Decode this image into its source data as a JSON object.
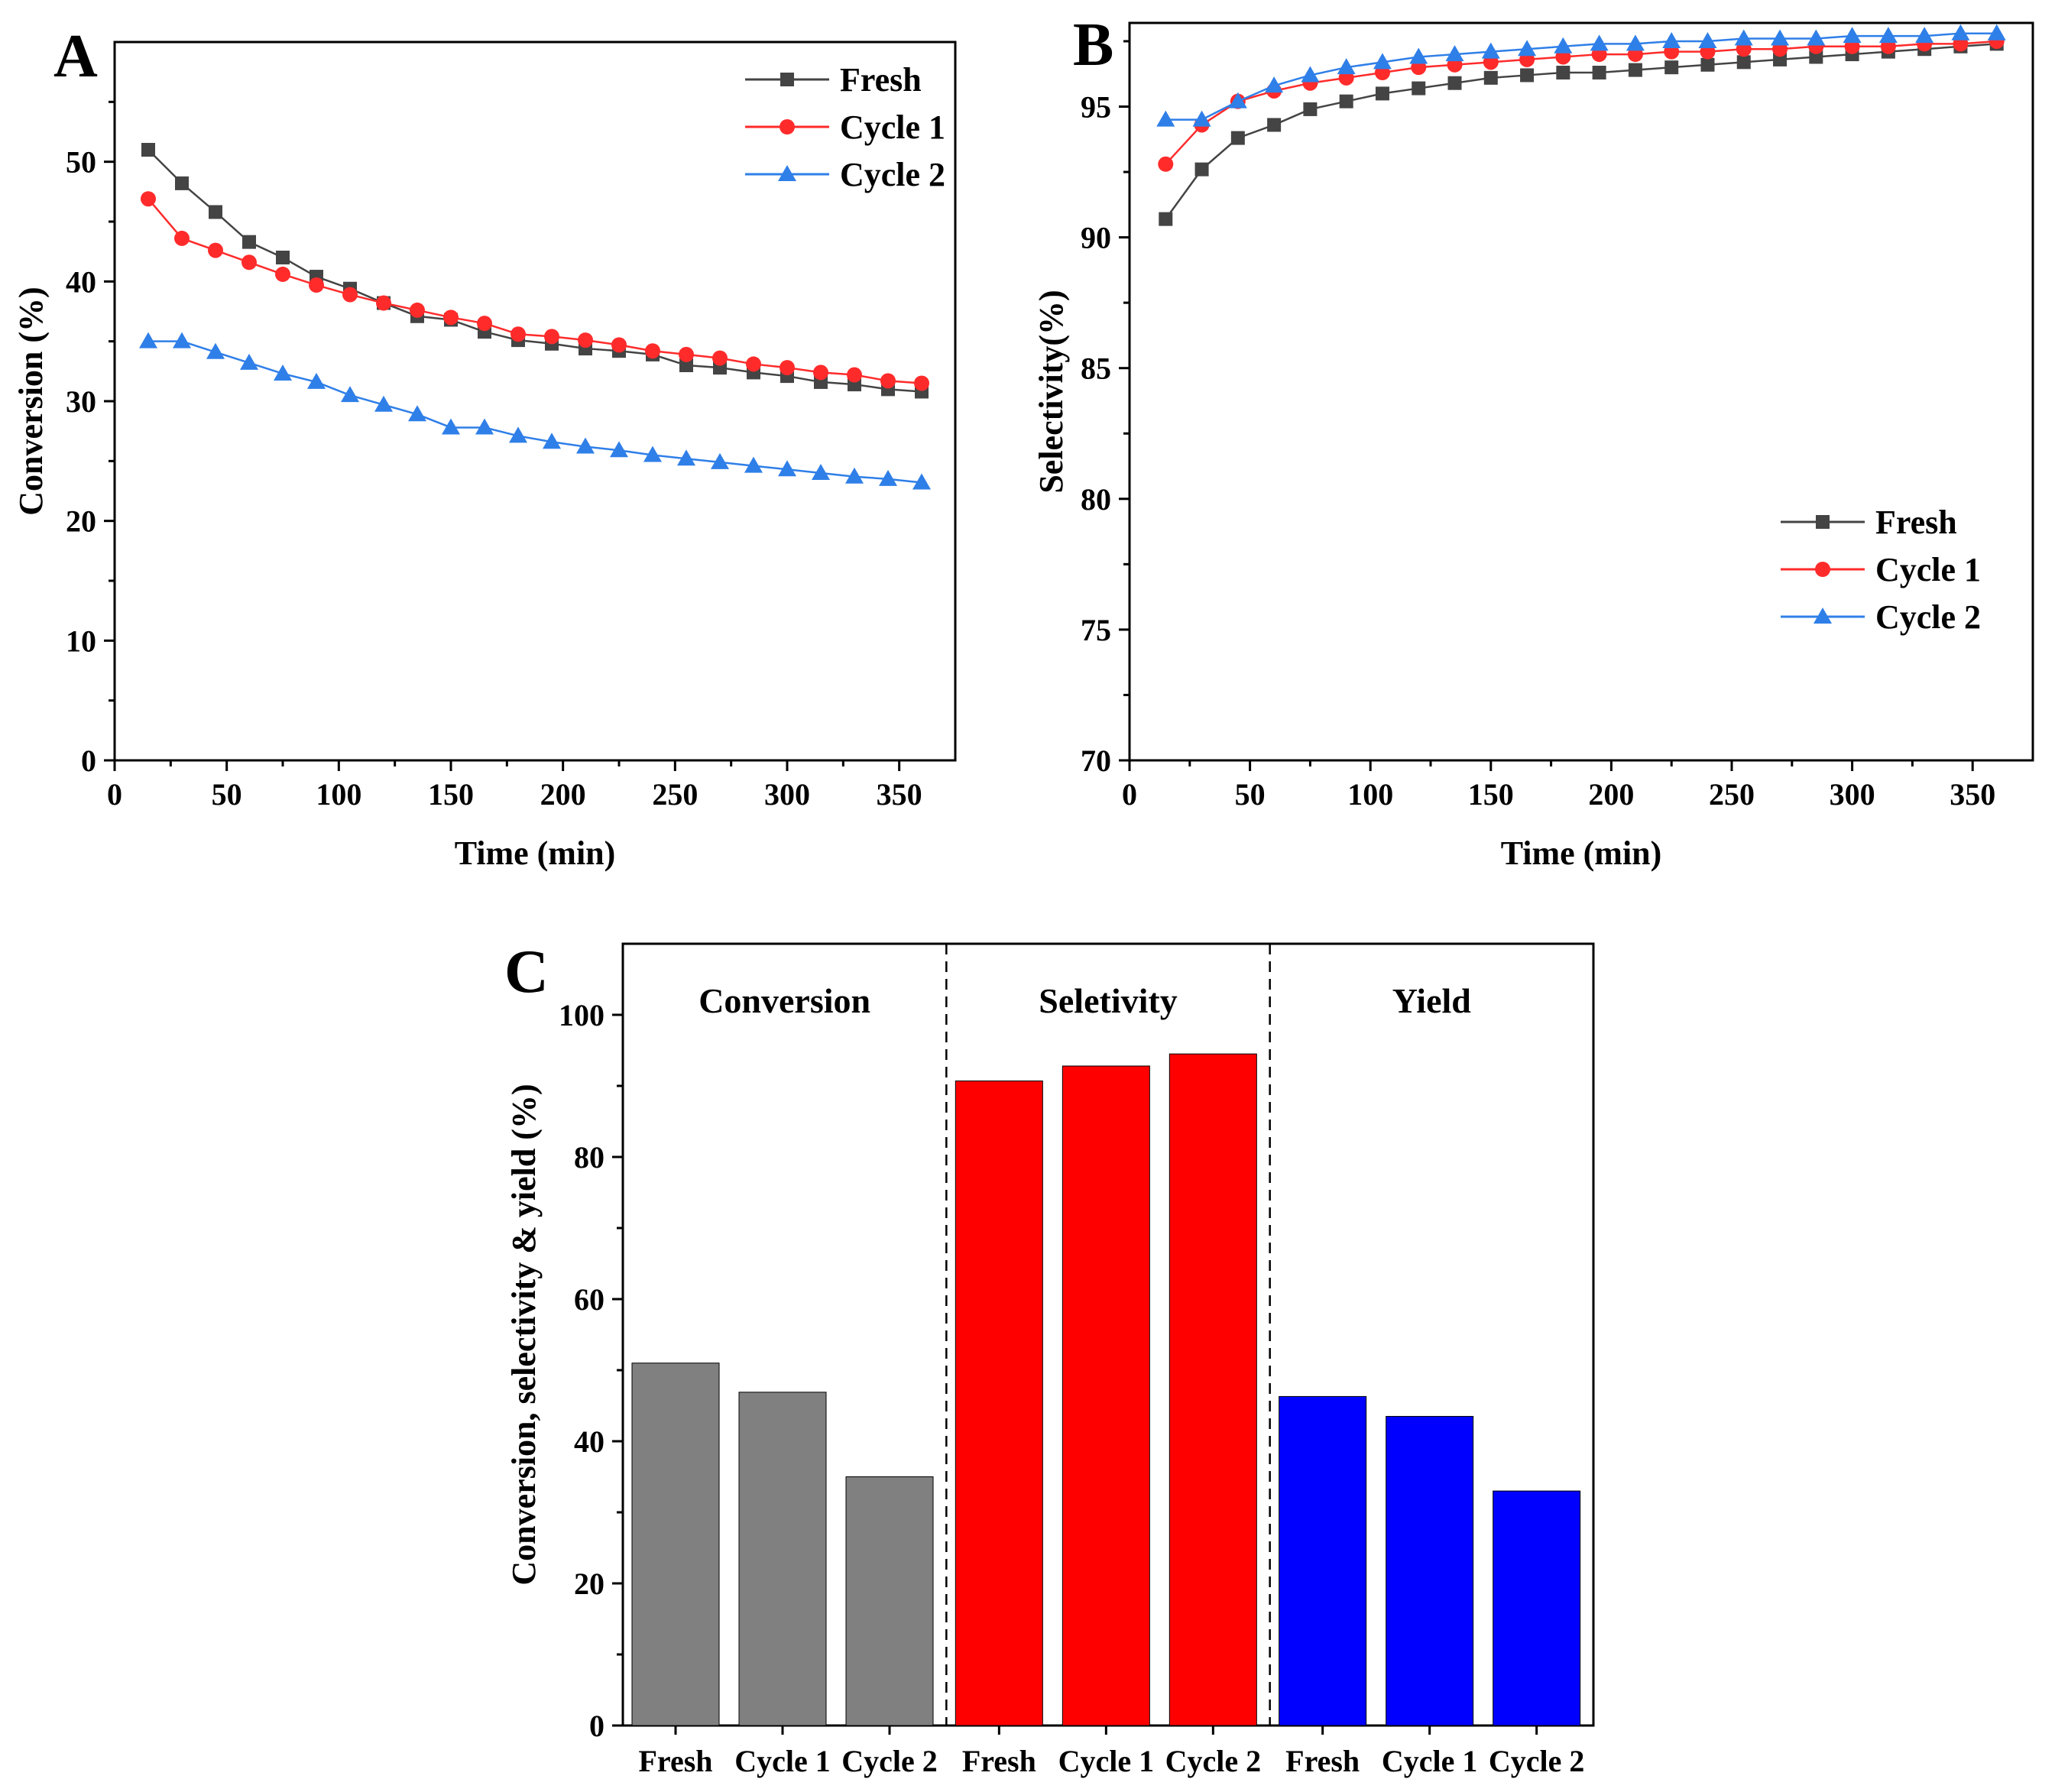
{
  "chart_data": [
    {
      "panel": "A",
      "type": "line",
      "xlabel": "Time (min)",
      "ylabel": "Conversion (%)",
      "xlim": [
        0,
        375
      ],
      "ylim": [
        0,
        60
      ],
      "xticks": [
        "0",
        "50",
        "100",
        "150",
        "200",
        "250",
        "300",
        "350"
      ],
      "yticks": [
        "0",
        "10",
        "20",
        "30",
        "40",
        "50"
      ],
      "x": [
        15,
        30,
        45,
        60,
        75,
        90,
        105,
        120,
        135,
        150,
        165,
        180,
        195,
        210,
        225,
        240,
        255,
        270,
        285,
        300,
        315,
        330,
        345,
        360
      ],
      "series": [
        {
          "name": "Fresh",
          "color": "#444444",
          "marker": "square",
          "values": [
            51.0,
            48.2,
            45.8,
            43.3,
            42.0,
            40.4,
            39.4,
            38.2,
            37.1,
            36.8,
            35.8,
            35.1,
            34.8,
            34.4,
            34.2,
            33.9,
            33.0,
            32.8,
            32.4,
            32.1,
            31.6,
            31.4,
            31.0,
            30.8
          ]
        },
        {
          "name": "Cycle 1",
          "color": "#ff2b2b",
          "marker": "circle",
          "values": [
            46.9,
            43.6,
            42.6,
            41.6,
            40.6,
            39.7,
            38.9,
            38.2,
            37.6,
            37.0,
            36.5,
            35.6,
            35.4,
            35.1,
            34.7,
            34.2,
            33.9,
            33.6,
            33.1,
            32.8,
            32.4,
            32.2,
            31.7,
            31.5
          ]
        },
        {
          "name": "Cycle 2",
          "color": "#2f7fe8",
          "marker": "triangle",
          "values": [
            35.0,
            35.0,
            34.1,
            33.2,
            32.3,
            31.6,
            30.5,
            29.7,
            28.9,
            27.8,
            27.8,
            27.1,
            26.6,
            26.2,
            25.9,
            25.5,
            25.2,
            24.9,
            24.6,
            24.3,
            24.0,
            23.7,
            23.5,
            23.2
          ]
        }
      ],
      "legend_position": "top-right"
    },
    {
      "panel": "B",
      "type": "line",
      "xlabel": "Time (min)",
      "ylabel": "Selectivity(%)",
      "xlim": [
        0,
        375
      ],
      "ylim": [
        70,
        98.2
      ],
      "xticks": [
        "0",
        "50",
        "100",
        "150",
        "200",
        "250",
        "300",
        "350"
      ],
      "yticks": [
        "70",
        "75",
        "80",
        "85",
        "90",
        "95"
      ],
      "x": [
        15,
        30,
        45,
        60,
        75,
        90,
        105,
        120,
        135,
        150,
        165,
        180,
        195,
        210,
        225,
        240,
        255,
        270,
        285,
        300,
        315,
        330,
        345,
        360
      ],
      "series": [
        {
          "name": "Fresh",
          "color": "#444444",
          "marker": "square",
          "values": [
            90.7,
            92.6,
            93.8,
            94.3,
            94.9,
            95.2,
            95.5,
            95.7,
            95.9,
            96.1,
            96.2,
            96.3,
            96.3,
            96.4,
            96.5,
            96.6,
            96.7,
            96.8,
            96.9,
            97.0,
            97.1,
            97.2,
            97.3,
            97.4
          ]
        },
        {
          "name": "Cycle 1",
          "color": "#ff2b2b",
          "marker": "circle",
          "values": [
            92.8,
            94.3,
            95.2,
            95.6,
            95.9,
            96.1,
            96.3,
            96.5,
            96.6,
            96.7,
            96.8,
            96.9,
            97.0,
            97.0,
            97.1,
            97.1,
            97.2,
            97.2,
            97.3,
            97.3,
            97.3,
            97.4,
            97.4,
            97.5
          ]
        },
        {
          "name": "Cycle 2",
          "color": "#2f7fe8",
          "marker": "triangle",
          "values": [
            94.5,
            94.5,
            95.2,
            95.8,
            96.2,
            96.5,
            96.7,
            96.9,
            97.0,
            97.1,
            97.2,
            97.3,
            97.4,
            97.4,
            97.5,
            97.5,
            97.6,
            97.6,
            97.6,
            97.7,
            97.7,
            97.7,
            97.8,
            97.8
          ]
        }
      ],
      "legend_position": "bottom-right"
    },
    {
      "panel": "C",
      "type": "bar",
      "ylabel": "Conversion, selectivity & yield (%)",
      "ylim": [
        0,
        110
      ],
      "yticks": [
        "0",
        "20",
        "40",
        "60",
        "80",
        "100"
      ],
      "categories": [
        "Fresh",
        "Cycle 1",
        "Cycle 2"
      ],
      "groups": [
        {
          "name": "Conversion",
          "color": "#808080",
          "values": [
            51.0,
            46.9,
            35.0
          ]
        },
        {
          "name": "Seletivity",
          "color": "#ff0000",
          "values": [
            90.7,
            92.8,
            94.5
          ]
        },
        {
          "name": "Yield",
          "color": "#0000ff",
          "values": [
            46.3,
            43.5,
            33.0
          ]
        }
      ]
    }
  ]
}
